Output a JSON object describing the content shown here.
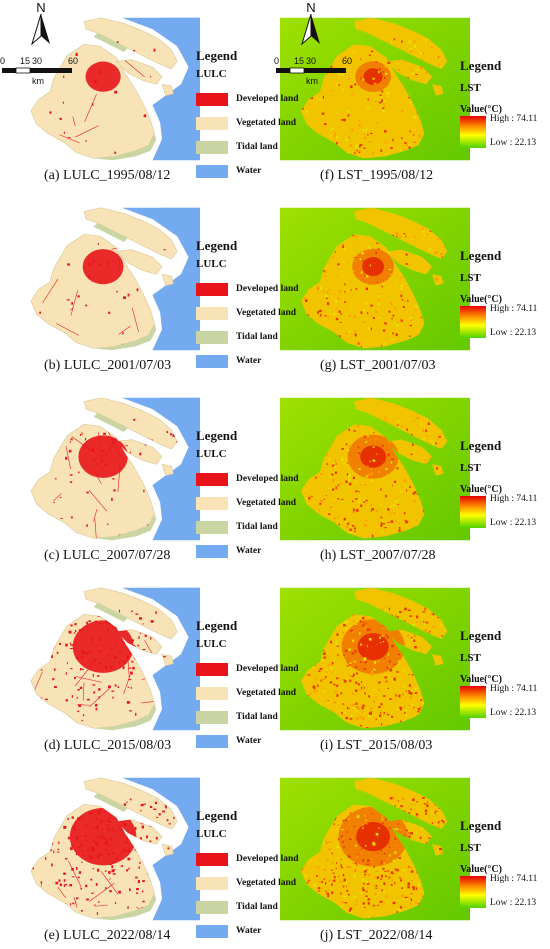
{
  "scalebar": {
    "ticks": [
      "0",
      "15",
      "30",
      "60"
    ],
    "unit": "km"
  },
  "north": "N",
  "lulc_legend": {
    "title": "Legend",
    "subtitle": "LULC",
    "classes": [
      {
        "label": "Developed land",
        "color": "#e8141a"
      },
      {
        "label": "Vegetated land",
        "color": "#f7e3b6"
      },
      {
        "label": "Tidal land",
        "color": "#c9d6a4"
      },
      {
        "label": "Water",
        "color": "#74aaf0"
      }
    ]
  },
  "lst_legend": {
    "title": "Legend",
    "subtitle": "LST",
    "value_label": "Value(°C)",
    "high": "High : 74.11",
    "low": "Low : 22.13"
  },
  "rows": [
    {
      "lulc_caption": "(a) LULC_1995/08/12",
      "lst_caption": "(f) LST_1995/08/12",
      "dev_level": 0.15
    },
    {
      "lulc_caption": "(b) LULC_2001/07/03",
      "lst_caption": "(g) LST_2001/07/03",
      "dev_level": 0.25
    },
    {
      "lulc_caption": "(c) LULC_2007/07/28",
      "lst_caption": "(h) LST_2007/07/28",
      "dev_level": 0.4
    },
    {
      "lulc_caption": "(d) LULC_2015/08/03",
      "lst_caption": "(i) LST_2015/08/03",
      "dev_level": 0.6
    },
    {
      "lulc_caption": "(e) LULC_2022/08/14",
      "lst_caption": "(j) LST_2022/08/14",
      "dev_level": 0.7
    }
  ]
}
